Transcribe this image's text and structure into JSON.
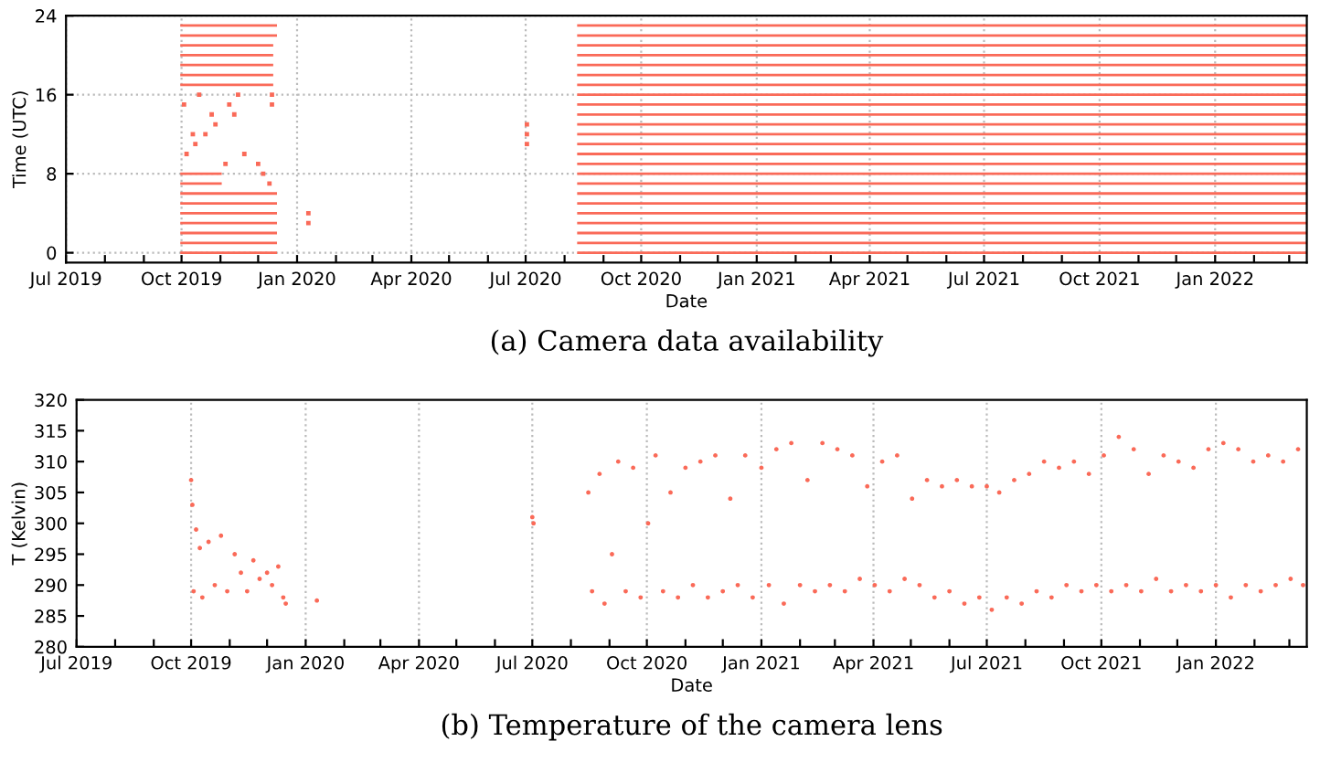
{
  "chart_data": [
    {
      "type": "line",
      "title": "(a) Camera data availability",
      "xlabel": "Date",
      "ylabel": "Time (UTC)",
      "xlim": [
        "2019-07-01",
        "2022-03-15"
      ],
      "ylim": [
        -1,
        24
      ],
      "yticks": [
        0,
        8,
        16,
        24
      ],
      "xticks": [
        {
          "value": "2019-07-01",
          "label": "Jul 2019"
        },
        {
          "value": "2019-08-01",
          "label": null
        },
        {
          "value": "2019-09-01",
          "label": null
        },
        {
          "value": "2019-10-01",
          "label": "Oct 2019"
        },
        {
          "value": "2019-11-01",
          "label": null
        },
        {
          "value": "2019-12-01",
          "label": null
        },
        {
          "value": "2020-01-01",
          "label": "Jan 2020"
        },
        {
          "value": "2020-02-01",
          "label": null
        },
        {
          "value": "2020-03-01",
          "label": null
        },
        {
          "value": "2020-04-01",
          "label": "Apr 2020"
        },
        {
          "value": "2020-05-01",
          "label": null
        },
        {
          "value": "2020-06-01",
          "label": null
        },
        {
          "value": "2020-07-01",
          "label": "Jul 2020"
        },
        {
          "value": "2020-08-01",
          "label": null
        },
        {
          "value": "2020-09-01",
          "label": null
        },
        {
          "value": "2020-10-01",
          "label": "Oct 2020"
        },
        {
          "value": "2020-11-01",
          "label": null
        },
        {
          "value": "2020-12-01",
          "label": null
        },
        {
          "value": "2021-01-01",
          "label": "Jan 2021"
        },
        {
          "value": "2021-02-01",
          "label": null
        },
        {
          "value": "2021-03-01",
          "label": null
        },
        {
          "value": "2021-04-01",
          "label": "Apr 2021"
        },
        {
          "value": "2021-05-01",
          "label": null
        },
        {
          "value": "2021-06-01",
          "label": null
        },
        {
          "value": "2021-07-01",
          "label": "Jul 2021"
        },
        {
          "value": "2021-08-01",
          "label": null
        },
        {
          "value": "2021-09-01",
          "label": null
        },
        {
          "value": "2021-10-01",
          "label": "Oct 2021"
        },
        {
          "value": "2021-11-01",
          "label": null
        },
        {
          "value": "2021-12-01",
          "label": null
        },
        {
          "value": "2022-01-01",
          "label": "Jan 2022"
        },
        {
          "value": "2022-02-01",
          "label": null
        },
        {
          "value": "2022-03-01",
          "label": null
        }
      ],
      "grid": true,
      "marker": "none",
      "line_style": "solid",
      "series": [
        {
          "color": "#fa6a58",
          "x": [
            "2019-10-01",
            "2019-12-15",
            "2020-01-01",
            "2020-08-12",
            "2022-03-15"
          ],
          "values": [
            0,
            0,
            null,
            0,
            0
          ]
        },
        {
          "color": "#fa6a58",
          "x": [
            "2019-10-01",
            "2019-12-15",
            "2020-01-01",
            "2020-08-12",
            "2022-03-15"
          ],
          "values": [
            1,
            1,
            null,
            1,
            1
          ]
        },
        {
          "color": "#fa6a58",
          "x": [
            "2019-10-01",
            "2019-12-15",
            "2020-01-01",
            "2020-08-12",
            "2022-03-15"
          ],
          "values": [
            2,
            2,
            null,
            2,
            2
          ]
        },
        {
          "color": "#fa6a58",
          "x": [
            "2019-10-01",
            "2019-12-15",
            "2020-01-01",
            "2020-08-12",
            "2022-03-15"
          ],
          "values": [
            3,
            3,
            null,
            3,
            3
          ]
        },
        {
          "color": "#fa6a58",
          "x": [
            "2019-10-01",
            "2019-12-15",
            "2020-01-01",
            "2020-08-12",
            "2022-03-15"
          ],
          "values": [
            4,
            4,
            null,
            4,
            4
          ]
        },
        {
          "color": "#fa6a58",
          "x": [
            "2019-10-01",
            "2019-12-15",
            "2020-01-01",
            "2020-08-12",
            "2022-03-15"
          ],
          "values": [
            5,
            5,
            null,
            5,
            5
          ]
        },
        {
          "color": "#fa6a58",
          "x": [
            "2019-10-01",
            "2019-12-15",
            "2020-01-01",
            "2020-08-12",
            "2022-03-15"
          ],
          "values": [
            6,
            6,
            null,
            6,
            6
          ]
        },
        {
          "color": "#fa6a58",
          "x": [
            "2019-10-01",
            "2019-11-01",
            "2020-01-01",
            "2020-08-12",
            "2022-03-15"
          ],
          "values": [
            7,
            7,
            null,
            7,
            7
          ]
        },
        {
          "color": "#fa6a58",
          "x": [
            "2019-10-01",
            "2019-11-01",
            "2020-01-01",
            "2020-08-12",
            "2022-03-15"
          ],
          "values": [
            8,
            8,
            null,
            8,
            8
          ]
        },
        {
          "color": "#fa6a58",
          "x": [
            "2020-08-12",
            "2022-03-15"
          ],
          "values": [
            9,
            9
          ]
        },
        {
          "color": "#fa6a58",
          "x": [
            "2020-08-12",
            "2022-03-15"
          ],
          "values": [
            10,
            10
          ]
        },
        {
          "color": "#fa6a58",
          "x": [
            "2020-08-12",
            "2022-03-15"
          ],
          "values": [
            11,
            11
          ]
        },
        {
          "color": "#fa6a58",
          "x": [
            "2020-08-12",
            "2022-03-15"
          ],
          "values": [
            12,
            12
          ]
        },
        {
          "color": "#fa6a58",
          "x": [
            "2020-08-12",
            "2022-03-15"
          ],
          "values": [
            13,
            13
          ]
        },
        {
          "color": "#fa6a58",
          "x": [
            "2020-08-12",
            "2022-03-15"
          ],
          "values": [
            14,
            14
          ]
        },
        {
          "color": "#fa6a58",
          "x": [
            "2020-08-12",
            "2022-03-15"
          ],
          "values": [
            15,
            15
          ]
        },
        {
          "color": "#fa6a58",
          "x": [
            "2020-08-12",
            "2022-03-15"
          ],
          "values": [
            16,
            16
          ]
        },
        {
          "color": "#fa6a58",
          "x": [
            "2019-10-01",
            "2019-12-12",
            "2020-01-01",
            "2020-08-12",
            "2022-03-15"
          ],
          "values": [
            17,
            17,
            null,
            17,
            17
          ]
        },
        {
          "color": "#fa6a58",
          "x": [
            "2019-10-01",
            "2019-12-12",
            "2020-01-01",
            "2020-08-12",
            "2022-03-15"
          ],
          "values": [
            18,
            18,
            null,
            18,
            18
          ]
        },
        {
          "color": "#fa6a58",
          "x": [
            "2019-10-01",
            "2019-12-12",
            "2020-01-01",
            "2020-08-12",
            "2022-03-15"
          ],
          "values": [
            19,
            19,
            null,
            19,
            19
          ]
        },
        {
          "color": "#fa6a58",
          "x": [
            "2019-10-01",
            "2019-12-12",
            "2020-01-01",
            "2020-08-12",
            "2022-03-15"
          ],
          "values": [
            20,
            20,
            null,
            20,
            20
          ]
        },
        {
          "color": "#fa6a58",
          "x": [
            "2019-10-01",
            "2019-12-12",
            "2020-01-01",
            "2020-08-12",
            "2022-03-15"
          ],
          "values": [
            21,
            21,
            null,
            21,
            21
          ]
        },
        {
          "color": "#fa6a58",
          "x": [
            "2019-10-01",
            "2019-12-15",
            "2020-01-01",
            "2020-08-12",
            "2022-03-15"
          ],
          "values": [
            22,
            22,
            null,
            22,
            22
          ]
        },
        {
          "color": "#fa6a58",
          "x": [
            "2019-10-01",
            "2019-12-15",
            "2020-01-01",
            "2020-08-12",
            "2022-03-15"
          ],
          "values": [
            23,
            23,
            null,
            23,
            23
          ]
        },
        {
          "type": "scatter",
          "marker": "square",
          "color": "#fa6a58",
          "x": [
            "2019-10-05",
            "2019-10-12",
            "2019-10-20",
            "2019-10-28",
            "2019-11-05",
            "2019-11-12",
            "2019-11-20",
            "2019-12-01",
            "2019-12-05",
            "2019-12-10",
            "2019-10-03",
            "2019-10-15",
            "2019-10-25",
            "2019-11-08",
            "2019-12-12",
            "2019-10-10",
            "2019-11-15",
            "2019-12-12",
            "2020-01-10",
            "2020-01-10",
            "2020-07-02",
            "2020-07-02",
            "2020-07-02"
          ],
          "values": [
            10,
            11,
            12,
            13,
            9,
            14,
            10,
            9,
            8,
            7,
            15,
            16,
            14,
            15,
            15,
            12,
            16,
            16,
            3,
            4,
            11,
            12,
            13
          ]
        }
      ]
    },
    {
      "type": "scatter",
      "title": "(b) Temperature of the camera lens",
      "xlabel": "Date",
      "ylabel": "T (Kelvin)",
      "xlim": [
        "2019-07-01",
        "2022-03-15"
      ],
      "ylim": [
        280,
        320
      ],
      "yticks": [
        280,
        285,
        290,
        295,
        300,
        305,
        310,
        315,
        320
      ],
      "xticks": [
        {
          "value": "2019-07-01",
          "label": "Jul 2019"
        },
        {
          "value": "2019-08-01",
          "label": null
        },
        {
          "value": "2019-09-01",
          "label": null
        },
        {
          "value": "2019-10-01",
          "label": "Oct 2019"
        },
        {
          "value": "2019-11-01",
          "label": null
        },
        {
          "value": "2019-12-01",
          "label": null
        },
        {
          "value": "2020-01-01",
          "label": "Jan 2020"
        },
        {
          "value": "2020-02-01",
          "label": null
        },
        {
          "value": "2020-03-01",
          "label": null
        },
        {
          "value": "2020-04-01",
          "label": "Apr 2020"
        },
        {
          "value": "2020-05-01",
          "label": null
        },
        {
          "value": "2020-06-01",
          "label": null
        },
        {
          "value": "2020-07-01",
          "label": "Jul 2020"
        },
        {
          "value": "2020-08-01",
          "label": null
        },
        {
          "value": "2020-09-01",
          "label": null
        },
        {
          "value": "2020-10-01",
          "label": "Oct 2020"
        },
        {
          "value": "2020-11-01",
          "label": null
        },
        {
          "value": "2020-12-01",
          "label": null
        },
        {
          "value": "2021-01-01",
          "label": "Jan 2021"
        },
        {
          "value": "2021-02-01",
          "label": null
        },
        {
          "value": "2021-03-01",
          "label": null
        },
        {
          "value": "2021-04-01",
          "label": "Apr 2021"
        },
        {
          "value": "2021-05-01",
          "label": null
        },
        {
          "value": "2021-06-01",
          "label": null
        },
        {
          "value": "2021-07-01",
          "label": "Jul 2021"
        },
        {
          "value": "2021-08-01",
          "label": null
        },
        {
          "value": "2021-09-01",
          "label": null
        },
        {
          "value": "2021-10-01",
          "label": "Oct 2021"
        },
        {
          "value": "2021-11-01",
          "label": null
        },
        {
          "value": "2021-12-01",
          "label": null
        },
        {
          "value": "2022-01-01",
          "label": "Jan 2022"
        },
        {
          "value": "2022-02-01",
          "label": null
        },
        {
          "value": "2022-03-01",
          "label": null
        }
      ],
      "grid": "x",
      "marker": "circle",
      "series": [
        {
          "color": "#fa6a58",
          "x": [
            "2019-10-01",
            "2019-10-02",
            "2019-10-03",
            "2019-10-05",
            "2019-10-08",
            "2019-10-10",
            "2019-10-15",
            "2019-10-20",
            "2019-10-25",
            "2019-10-30",
            "2019-11-05",
            "2019-11-10",
            "2019-11-15",
            "2019-11-20",
            "2019-11-25",
            "2019-12-01",
            "2019-12-05",
            "2019-12-10",
            "2019-12-14",
            "2019-12-16",
            "2020-01-10",
            "2020-07-01",
            "2020-07-02",
            "2020-08-15",
            "2020-08-18",
            "2020-08-24",
            "2020-08-28",
            "2020-09-03",
            "2020-09-08",
            "2020-09-14",
            "2020-09-20",
            "2020-09-26",
            "2020-10-02",
            "2020-10-08",
            "2020-10-14",
            "2020-10-20",
            "2020-10-26",
            "2020-11-01",
            "2020-11-07",
            "2020-11-13",
            "2020-11-19",
            "2020-11-25",
            "2020-12-01",
            "2020-12-07",
            "2020-12-13",
            "2020-12-19",
            "2020-12-25",
            "2021-01-01",
            "2021-01-07",
            "2021-01-13",
            "2021-01-19",
            "2021-01-25",
            "2021-02-01",
            "2021-02-07",
            "2021-02-13",
            "2021-02-19",
            "2021-02-25",
            "2021-03-03",
            "2021-03-09",
            "2021-03-15",
            "2021-03-21",
            "2021-03-27",
            "2021-04-02",
            "2021-04-08",
            "2021-04-14",
            "2021-04-20",
            "2021-04-26",
            "2021-05-02",
            "2021-05-08",
            "2021-05-14",
            "2021-05-20",
            "2021-05-26",
            "2021-06-01",
            "2021-06-07",
            "2021-06-13",
            "2021-06-19",
            "2021-06-25",
            "2021-07-01",
            "2021-07-05",
            "2021-07-11",
            "2021-07-17",
            "2021-07-23",
            "2021-07-29",
            "2021-08-04",
            "2021-08-10",
            "2021-08-16",
            "2021-08-22",
            "2021-08-28",
            "2021-09-03",
            "2021-09-09",
            "2021-09-15",
            "2021-09-21",
            "2021-09-27",
            "2021-10-03",
            "2021-10-09",
            "2021-10-15",
            "2021-10-21",
            "2021-10-27",
            "2021-11-02",
            "2021-11-08",
            "2021-11-14",
            "2021-11-20",
            "2021-11-26",
            "2021-12-02",
            "2021-12-08",
            "2021-12-14",
            "2021-12-20",
            "2021-12-26",
            "2022-01-01",
            "2022-01-07",
            "2022-01-13",
            "2022-01-19",
            "2022-01-25",
            "2022-01-31",
            "2022-02-06",
            "2022-02-12",
            "2022-02-18",
            "2022-02-24",
            "2022-03-02",
            "2022-03-08",
            "2022-03-12"
          ],
          "values": [
            307,
            303,
            289,
            299,
            296,
            288,
            297,
            290,
            298,
            289,
            295,
            292,
            289,
            294,
            291,
            292,
            290,
            293,
            288,
            287,
            287.5,
            301,
            300,
            305,
            289,
            308,
            287,
            295,
            310,
            289,
            309,
            288,
            300,
            311,
            289,
            305,
            288,
            309,
            290,
            310,
            288,
            311,
            289,
            304,
            290,
            311,
            288,
            309,
            290,
            312,
            287,
            313,
            290,
            307,
            289,
            313,
            290,
            312,
            289,
            311,
            291,
            306,
            290,
            310,
            289,
            311,
            291,
            304,
            290,
            307,
            288,
            306,
            289,
            307,
            287,
            306,
            288,
            306,
            286,
            305,
            288,
            307,
            287,
            308,
            289,
            310,
            288,
            309,
            290,
            310,
            289,
            308,
            290,
            311,
            289,
            314,
            290,
            312,
            289,
            308,
            291,
            311,
            289,
            310,
            290,
            309,
            289,
            312,
            290,
            313,
            288,
            312,
            290,
            310,
            289,
            311,
            290,
            310,
            291,
            312,
            290
          ]
        }
      ]
    }
  ]
}
